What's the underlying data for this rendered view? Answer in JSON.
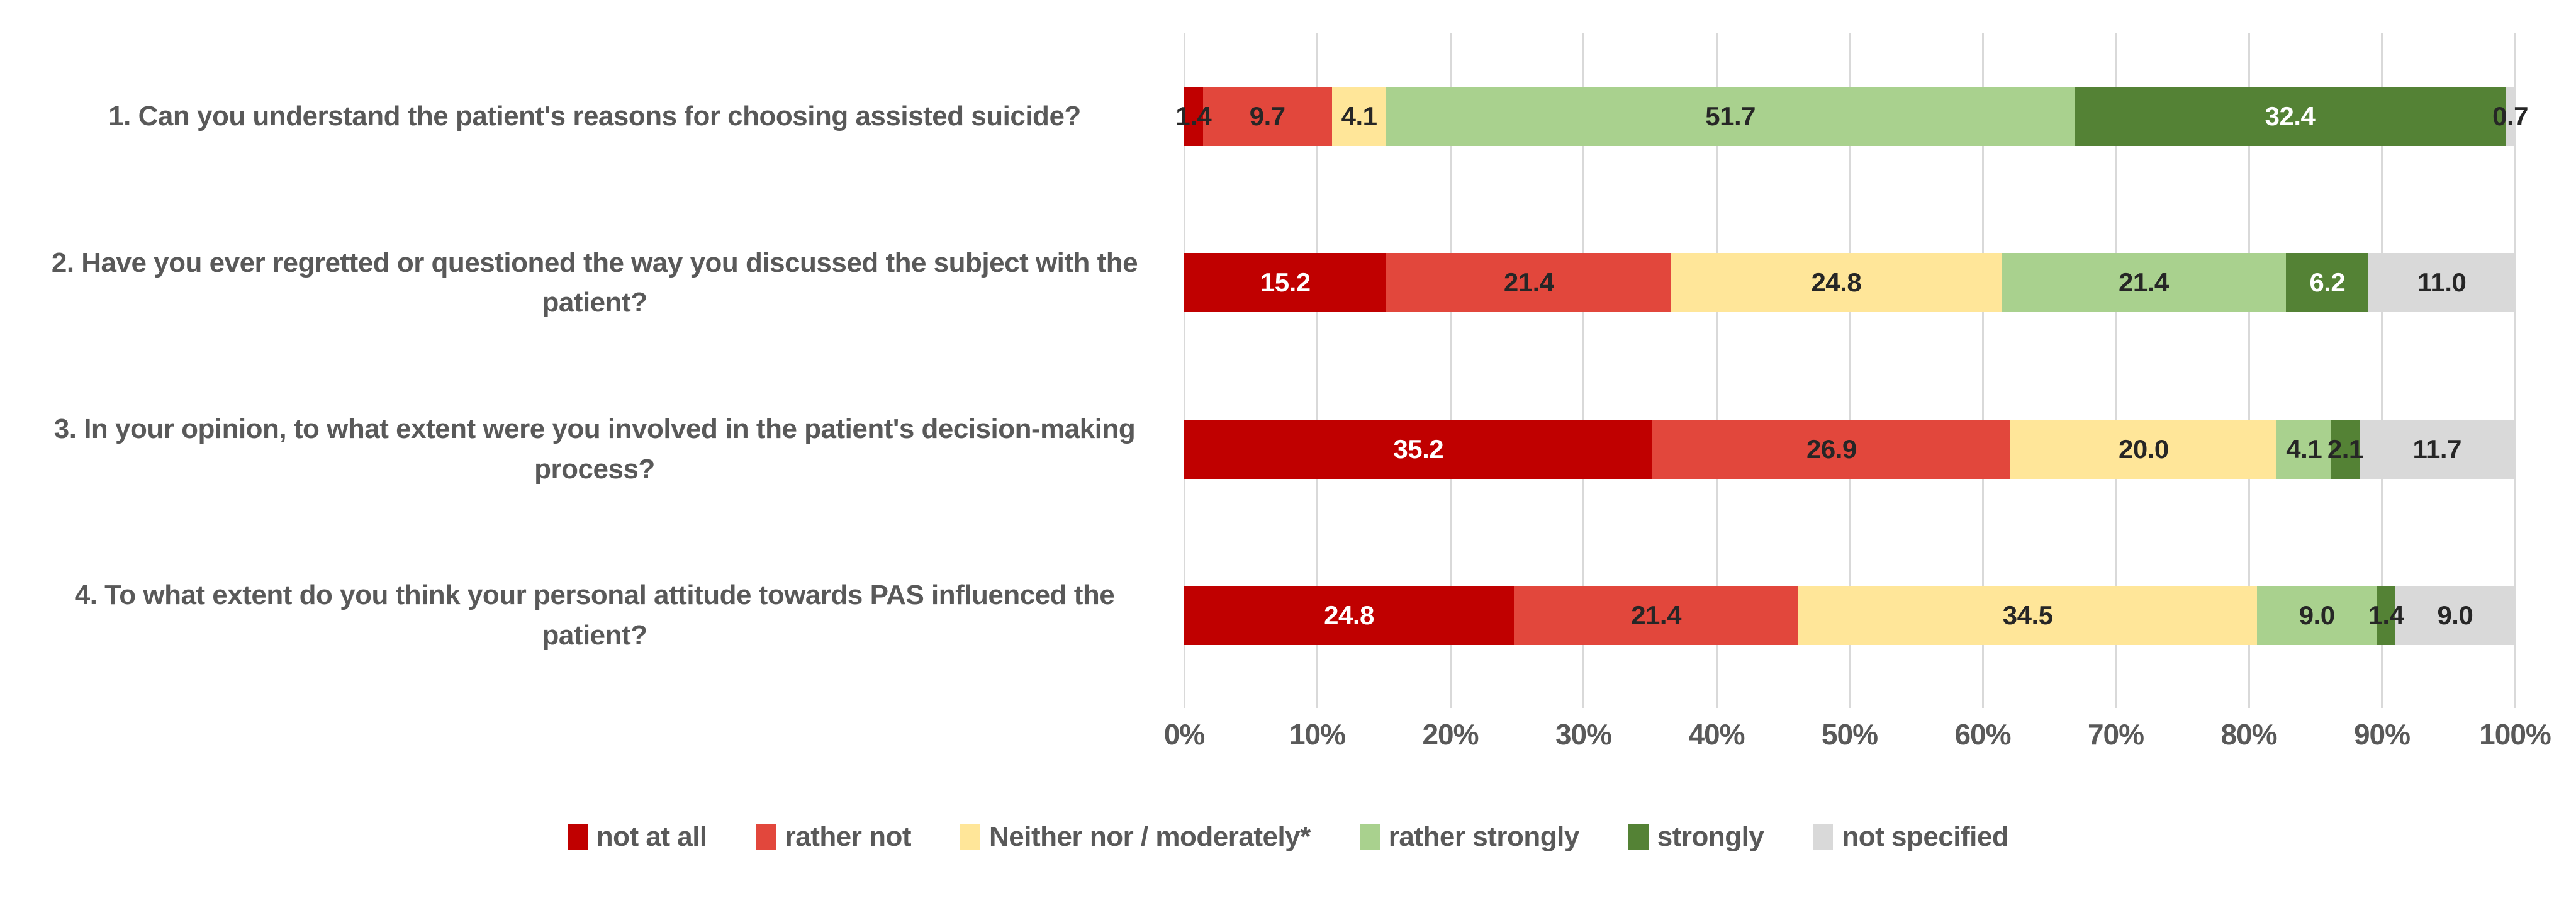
{
  "chart_data": {
    "type": "bar",
    "orientation": "horizontal",
    "stacked": true,
    "normalized_to_100": true,
    "title": "",
    "xlabel": "",
    "ylabel": "",
    "categories": [
      "1. Can you understand the patient's reasons for choosing assisted suicide?",
      "2. Have you ever regretted or questioned the way you discussed the subject with the patient?",
      "3. In your opinion, to what extent were you involved in the patient's decision-making process?",
      "4. To what extent do you think your personal attitude towards PAS influenced the patient?"
    ],
    "series": [
      {
        "name": "not at all",
        "color": "#C00000",
        "values": [
          1.4,
          15.2,
          35.2,
          24.8
        ],
        "value_label_colors": [
          "#262626",
          "#FFFFFF",
          "#FFFFFF",
          "#FFFFFF"
        ]
      },
      {
        "name": "rather not",
        "color": "#E2473C",
        "values": [
          9.7,
          21.4,
          26.9,
          21.4
        ],
        "value_label_colors": [
          "#262626",
          "#262626",
          "#262626",
          "#262626"
        ]
      },
      {
        "name": "Neither nor / moderately*",
        "color": "#FFE699",
        "values": [
          4.1,
          24.8,
          20.0,
          34.5
        ],
        "value_label_colors": [
          "#262626",
          "#262626",
          "#262626",
          "#262626"
        ]
      },
      {
        "name": "rather strongly",
        "color": "#A9D18E",
        "values": [
          51.7,
          21.4,
          4.1,
          9.0
        ],
        "value_label_colors": [
          "#262626",
          "#262626",
          "#262626",
          "#262626"
        ]
      },
      {
        "name": "strongly",
        "color": "#548235",
        "values": [
          32.4,
          6.2,
          2.1,
          1.4
        ],
        "value_label_colors": [
          "#FFFFFF",
          "#FFFFFF",
          "#262626",
          "#262626"
        ]
      },
      {
        "name": "not specified",
        "color": "#D9D9D9",
        "values": [
          0.7,
          11.0,
          11.7,
          9.0
        ],
        "value_label_colors": [
          "#262626",
          "#262626",
          "#262626",
          "#262626"
        ]
      }
    ],
    "x_axis": {
      "range": [
        0,
        100
      ],
      "tick_labels": [
        "0%",
        "10%",
        "20%",
        "30%",
        "40%",
        "50%",
        "60%",
        "70%",
        "80%",
        "90%",
        "100%"
      ],
      "gridlines": true
    },
    "legend_position": "bottom",
    "value_label_decimals": 1
  },
  "colors": {
    "background": "#FFFFFF",
    "gridline": "#D9D9D9",
    "axis_text": "#595959",
    "category_text": "#595959",
    "legend_text": "#595959"
  }
}
